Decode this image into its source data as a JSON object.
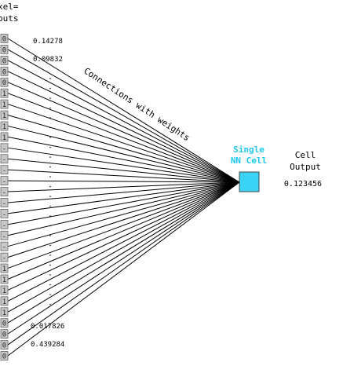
{
  "header": {
    "line1": "xel=",
    "line2": "puts"
  },
  "inputs": [
    "0",
    "0",
    "0",
    "0",
    "0",
    "1",
    "1",
    "1",
    "1",
    "1",
    "-",
    "-",
    "-",
    "-",
    "-",
    "-",
    "-",
    "-",
    "-",
    "-",
    "-",
    "1",
    "1",
    "1",
    "1",
    "1",
    "0",
    "0",
    "0",
    "0"
  ],
  "weights": {
    "top": [
      "0.14278",
      "0.09832"
    ],
    "bottom": [
      "0.017826",
      "0.439284"
    ]
  },
  "connections_label": "Connections with weights",
  "cell": {
    "label_line1": "Single",
    "label_line2": "NN Cell",
    "color": "#3bd3f5",
    "label_color": "#1ec8ee"
  },
  "output": {
    "label_line1": "Cell",
    "label_line2": "Output",
    "value": "0.123456"
  }
}
